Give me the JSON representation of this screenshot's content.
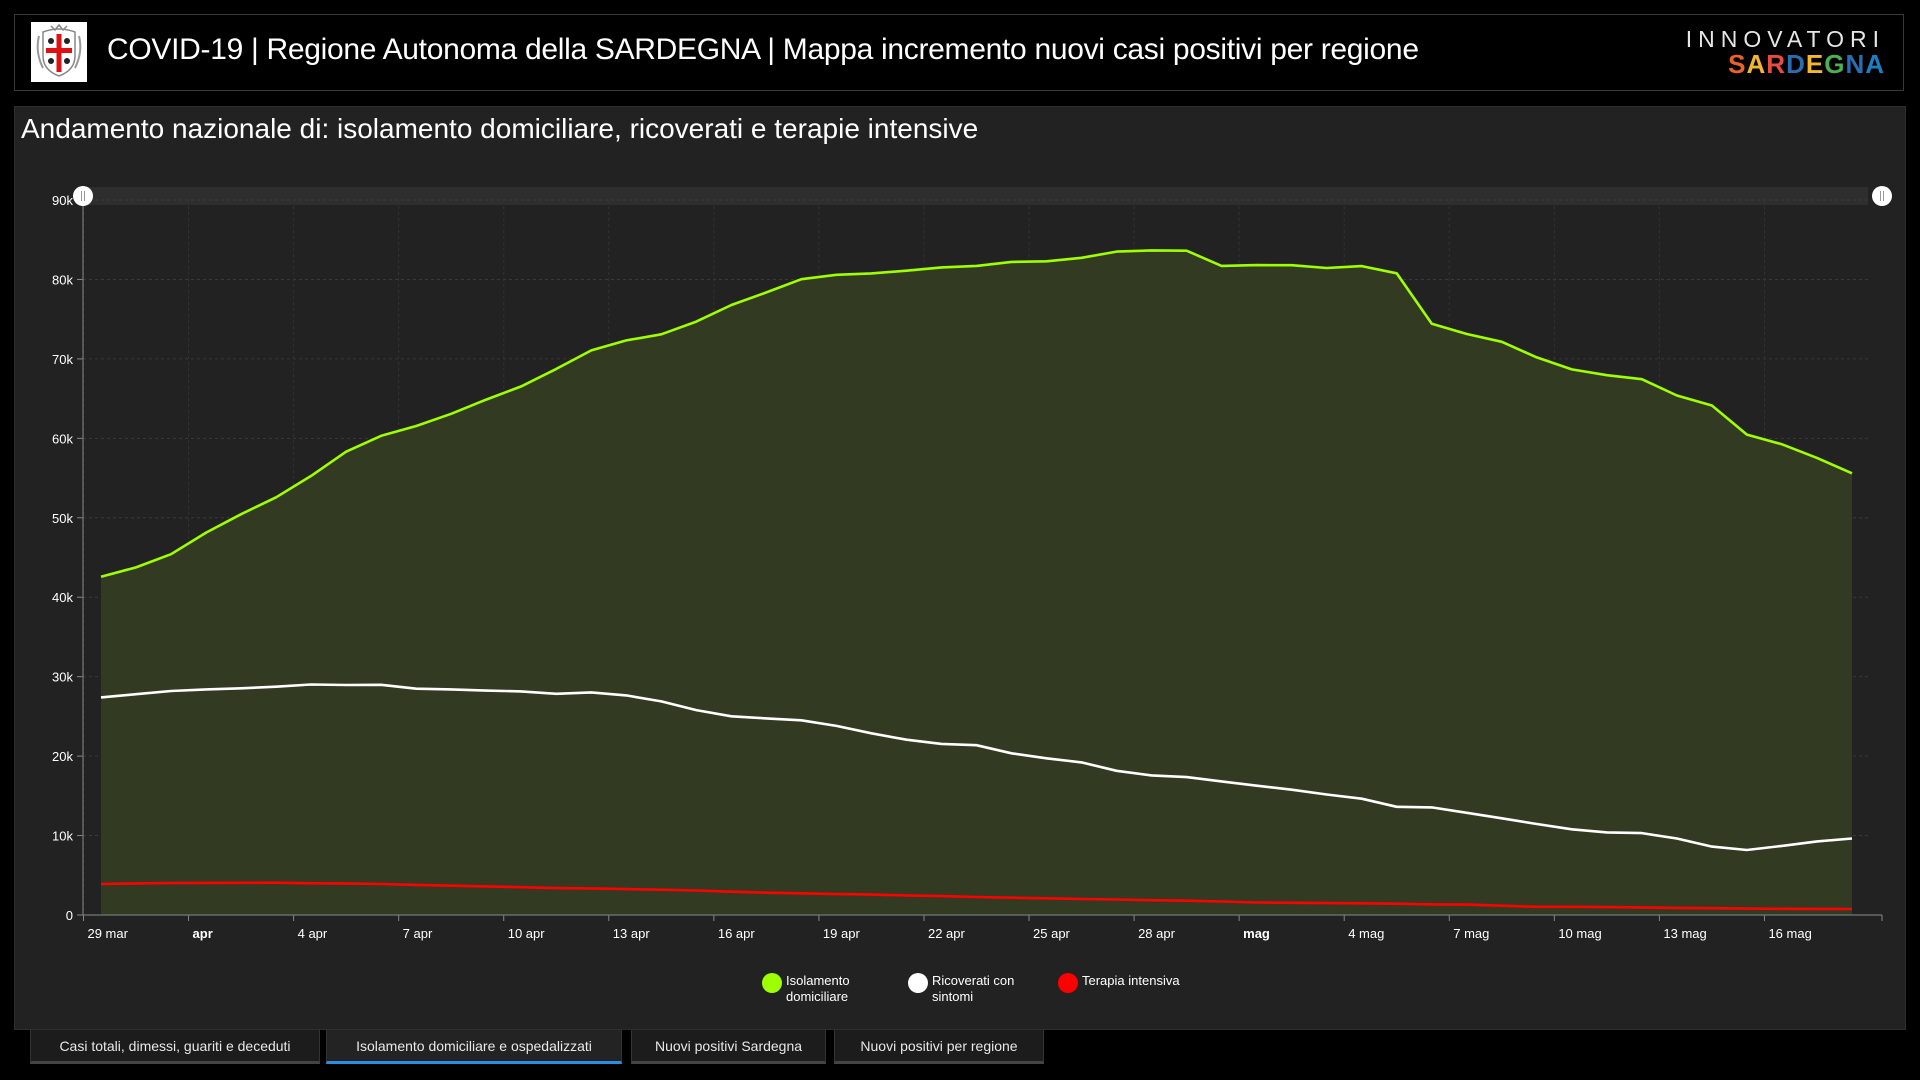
{
  "header": {
    "title": "COVID-19 | Regione Autonoma della SARDEGNA | Mappa incremento nuovi casi positivi per regione",
    "brand_top": "INNOVATORI",
    "brand_bottom": "SARDEGNA",
    "brand_colors": [
      "#e8622a",
      "#f2b632",
      "#e84c3d",
      "#2a6db0",
      "#f2b632",
      "#4caf50",
      "#2a6db0",
      "#1c7fc4"
    ]
  },
  "tabs": [
    {
      "label": "Casi totali, dimessi, guariti e deceduti",
      "active": false
    },
    {
      "label": "Isolamento domiciliare e ospedalizzati",
      "active": true
    },
    {
      "label": "Nuovi positivi Sardegna",
      "active": false
    },
    {
      "label": "Nuovi positivi per regione",
      "active": false
    }
  ],
  "chart_data": {
    "type": "area",
    "title": "Andamento nazionale di: isolamento domiciliare, ricoverati e terapie intensive",
    "xlabel": "",
    "ylabel": "",
    "ylim": [
      0,
      90000
    ],
    "yticks": [
      {
        "value": 0,
        "label": "0"
      },
      {
        "value": 10000,
        "label": "10k"
      },
      {
        "value": 20000,
        "label": "20k"
      },
      {
        "value": 30000,
        "label": "30k"
      },
      {
        "value": 40000,
        "label": "40k"
      },
      {
        "value": 50000,
        "label": "50k"
      },
      {
        "value": 60000,
        "label": "60k"
      },
      {
        "value": 70000,
        "label": "70k"
      },
      {
        "value": 80000,
        "label": "80k"
      },
      {
        "value": 90000,
        "label": "90k"
      }
    ],
    "xticks": [
      {
        "day": 0,
        "label": "29 mar",
        "bold": false
      },
      {
        "day": 3,
        "label": "apr",
        "bold": true
      },
      {
        "day": 6,
        "label": "4 apr",
        "bold": false
      },
      {
        "day": 9,
        "label": "7 apr",
        "bold": false
      },
      {
        "day": 12,
        "label": "10 apr",
        "bold": false
      },
      {
        "day": 15,
        "label": "13 apr",
        "bold": false
      },
      {
        "day": 18,
        "label": "16 apr",
        "bold": false
      },
      {
        "day": 21,
        "label": "19 apr",
        "bold": false
      },
      {
        "day": 24,
        "label": "22 apr",
        "bold": false
      },
      {
        "day": 27,
        "label": "25 apr",
        "bold": false
      },
      {
        "day": 30,
        "label": "28 apr",
        "bold": false
      },
      {
        "day": 33,
        "label": "mag",
        "bold": true
      },
      {
        "day": 36,
        "label": "4 mag",
        "bold": false
      },
      {
        "day": 39,
        "label": "7 mag",
        "bold": false
      },
      {
        "day": 42,
        "label": "10 mag",
        "bold": false
      },
      {
        "day": 45,
        "label": "13 mag",
        "bold": false
      },
      {
        "day": 48,
        "label": "16 mag",
        "bold": false
      }
    ],
    "x_domain_days": [
      0,
      51
    ],
    "x_start_date": "29 mar",
    "grid": true,
    "legend_position": "bottom",
    "series": [
      {
        "name": "Isolamento domiciliare",
        "color": "#9eff00",
        "fill": "#323a22",
        "values": [
          42588,
          43752,
          45420,
          48134,
          50456,
          52579,
          55270,
          58320,
          60313,
          61557,
          63084,
          64873,
          66534,
          68744,
          71063,
          72333,
          73094,
          74696,
          76778,
          78364,
          80031,
          80589,
          80758,
          81104,
          81510,
          81708,
          82212,
          82286,
          82722,
          83504,
          83652,
          83619,
          81708,
          81808,
          81796,
          81436,
          81683,
          80770,
          74426,
          73139,
          72157,
          70187,
          68679,
          67950,
          67449,
          65392,
          64132,
          60470,
          59248,
          57536,
          55597
        ]
      },
      {
        "name": "Ricoverati con sintomi",
        "color": "#ffffff",
        "values": [
          27386,
          27795,
          28192,
          28403,
          28540,
          28741,
          29010,
          28949,
          28976,
          28485,
          28399,
          28242,
          28144,
          27847,
          28023,
          27643,
          26893,
          25786,
          25007,
          24753,
          24509,
          23805,
          22871,
          22068,
          21533,
          21372,
          20353,
          19723,
          19210,
          18149,
          17569,
          17357,
          16823,
          16270,
          15769,
          15174,
          14636,
          13618,
          13539,
          12865,
          12172,
          11453,
          10792,
          10400,
          10311,
          9624,
          8613,
          8185,
          8695,
          9269,
          9624
        ]
      },
      {
        "name": "Terapia intensiva",
        "color": "#ff0000",
        "values": [
          3906,
          3981,
          4023,
          4035,
          4053,
          4068,
          3994,
          3977,
          3898,
          3792,
          3693,
          3605,
          3497,
          3381,
          3343,
          3260,
          3186,
          3079,
          2936,
          2812,
          2733,
          2635,
          2573,
          2471,
          2384,
          2267,
          2173,
          2102,
          2009,
          1956,
          1863,
          1795,
          1694,
          1578,
          1539,
          1501,
          1479,
          1427,
          1333,
          1311,
          1168,
          1034,
          1027,
          999,
          952,
          893,
          855,
          808,
          775,
          762,
          749
        ]
      }
    ]
  }
}
